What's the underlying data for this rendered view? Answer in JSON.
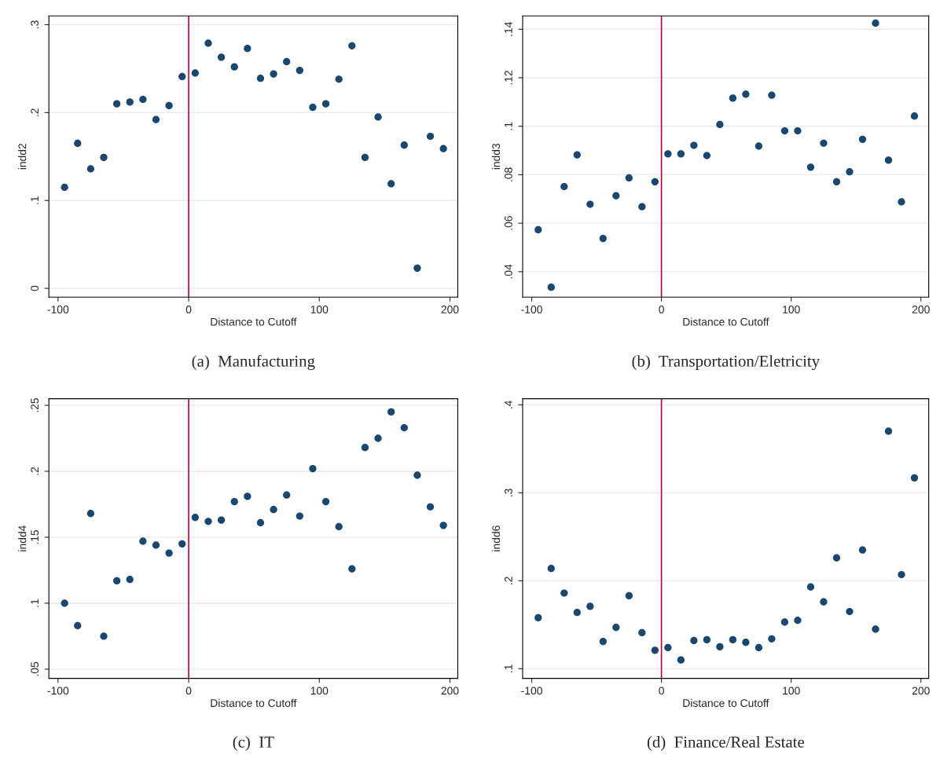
{
  "chart_data": [
    {
      "type": "scatter",
      "title": "(a)  Manufacturing",
      "xlabel": "Distance to Cutoff",
      "ylabel": "indd2",
      "marker": "circle",
      "grid": "y",
      "x": [
        -95,
        -85,
        -75,
        -65,
        -55,
        -45,
        -35,
        -25,
        -15,
        -5,
        5,
        15,
        25,
        35,
        45,
        55,
        65,
        75,
        85,
        95,
        105,
        115,
        125,
        135,
        145,
        155,
        165,
        175,
        185,
        195
      ],
      "series": [
        {
          "color": "#1a476f",
          "values": [
            0.115,
            0.165,
            0.136,
            0.149,
            0.21,
            0.212,
            0.215,
            0.192,
            0.208,
            0.241,
            0.245,
            0.279,
            0.263,
            0.252,
            0.273,
            0.239,
            0.244,
            0.258,
            0.248,
            0.206,
            0.21,
            0.238,
            0.276,
            0.149,
            0.195,
            0.119,
            0.163,
            0.023,
            0.173,
            0.159
          ]
        }
      ],
      "xlim": [
        -107,
        206
      ],
      "xticks": [
        -100,
        0,
        100,
        200
      ],
      "ylim": [
        -0.01,
        0.31
      ],
      "yticks": [
        {
          "value": 0,
          "label": "0"
        },
        {
          "value": 0.1,
          "label": ".1"
        },
        {
          "value": 0.2,
          "label": ".2"
        },
        {
          "value": 0.3,
          "label": ".3"
        }
      ],
      "ref_lines": [
        {
          "axis": "x",
          "value": 0,
          "color": "#c10534"
        }
      ]
    },
    {
      "type": "scatter",
      "title": "(b)  Transportation/Eletricity",
      "xlabel": "Distance to Cutoff",
      "ylabel": "indd3",
      "marker": "circle",
      "grid": "y",
      "x": [
        -95,
        -85,
        -75,
        -65,
        -55,
        -45,
        -35,
        -25,
        -15,
        -5,
        5,
        15,
        25,
        35,
        45,
        55,
        65,
        75,
        85,
        95,
        105,
        115,
        125,
        135,
        145,
        155,
        165,
        175,
        185,
        195
      ],
      "series": [
        {
          "color": "#1a476f",
          "values": [
            0.0573,
            0.0336,
            0.0751,
            0.0882,
            0.0678,
            0.0537,
            0.0713,
            0.0787,
            0.0668,
            0.0771,
            0.0886,
            0.0886,
            0.0921,
            0.0879,
            0.1007,
            0.1116,
            0.1132,
            0.0918,
            0.1128,
            0.0981,
            0.0981,
            0.0831,
            0.093,
            0.0771,
            0.0812,
            0.0946,
            0.1425,
            0.086,
            0.0688,
            0.1042
          ]
        }
      ],
      "xlim": [
        -107,
        206
      ],
      "xticks": [
        -100,
        0,
        100,
        200
      ],
      "ylim": [
        0.0295,
        0.1455
      ],
      "yticks": [
        {
          "value": 0.04,
          "label": ".04"
        },
        {
          "value": 0.06,
          "label": ".06"
        },
        {
          "value": 0.08,
          "label": ".08"
        },
        {
          "value": 0.1,
          "label": ".1"
        },
        {
          "value": 0.12,
          "label": ".12"
        },
        {
          "value": 0.14,
          "label": ".14"
        }
      ],
      "ref_lines": [
        {
          "axis": "x",
          "value": 0,
          "color": "#c10534"
        }
      ]
    },
    {
      "type": "scatter",
      "title": "(c)  IT",
      "xlabel": "Distance to Cutoff",
      "ylabel": "indd4",
      "marker": "circle",
      "grid": "y",
      "x": [
        -95,
        -85,
        -75,
        -65,
        -55,
        -45,
        -35,
        -25,
        -15,
        -5,
        5,
        15,
        25,
        35,
        45,
        55,
        65,
        75,
        85,
        95,
        105,
        115,
        125,
        135,
        145,
        155,
        165,
        175,
        185,
        195
      ],
      "series": [
        {
          "color": "#1a476f",
          "values": [
            0.1,
            0.083,
            0.168,
            0.075,
            0.117,
            0.118,
            0.147,
            0.144,
            0.138,
            0.145,
            0.165,
            0.162,
            0.163,
            0.177,
            0.181,
            0.161,
            0.171,
            0.182,
            0.166,
            0.202,
            0.177,
            0.158,
            0.126,
            0.218,
            0.225,
            0.245,
            0.233,
            0.197,
            0.173,
            0.159
          ]
        }
      ],
      "xlim": [
        -107,
        206
      ],
      "xticks": [
        -100,
        0,
        100,
        200
      ],
      "ylim": [
        0.043,
        0.255
      ],
      "yticks": [
        {
          "value": 0.05,
          "label": ".05"
        },
        {
          "value": 0.1,
          "label": ".1"
        },
        {
          "value": 0.15,
          "label": ".15"
        },
        {
          "value": 0.2,
          "label": ".2"
        },
        {
          "value": 0.25,
          "label": ".25"
        }
      ],
      "ref_lines": [
        {
          "axis": "x",
          "value": 0,
          "color": "#c10534"
        }
      ]
    },
    {
      "type": "scatter",
      "title": "(d)  Finance/Real Estate",
      "xlabel": "Distance to Cutoff",
      "ylabel": "indd6",
      "marker": "circle",
      "grid": "y",
      "x": [
        -95,
        -85,
        -75,
        -65,
        -55,
        -45,
        -35,
        -25,
        -15,
        -5,
        5,
        15,
        25,
        35,
        45,
        55,
        65,
        75,
        85,
        95,
        105,
        115,
        125,
        135,
        145,
        155,
        165,
        175,
        185,
        195
      ],
      "series": [
        {
          "color": "#1a476f",
          "values": [
            0.158,
            0.214,
            0.186,
            0.164,
            0.171,
            0.131,
            0.147,
            0.183,
            0.141,
            0.121,
            0.124,
            0.11,
            0.132,
            0.133,
            0.125,
            0.133,
            0.13,
            0.124,
            0.134,
            0.153,
            0.155,
            0.193,
            0.176,
            0.226,
            0.165,
            0.235,
            0.145,
            0.37,
            0.207,
            0.317
          ]
        }
      ],
      "xlim": [
        -107,
        206
      ],
      "xticks": [
        -100,
        0,
        100,
        200
      ],
      "ylim": [
        0.089,
        0.407
      ],
      "yticks": [
        {
          "value": 0.1,
          "label": ".1"
        },
        {
          "value": 0.2,
          "label": ".2"
        },
        {
          "value": 0.3,
          "label": ".3"
        },
        {
          "value": 0.4,
          "label": ".4"
        }
      ],
      "ref_lines": [
        {
          "axis": "x",
          "value": 0,
          "color": "#c10534"
        }
      ]
    }
  ]
}
